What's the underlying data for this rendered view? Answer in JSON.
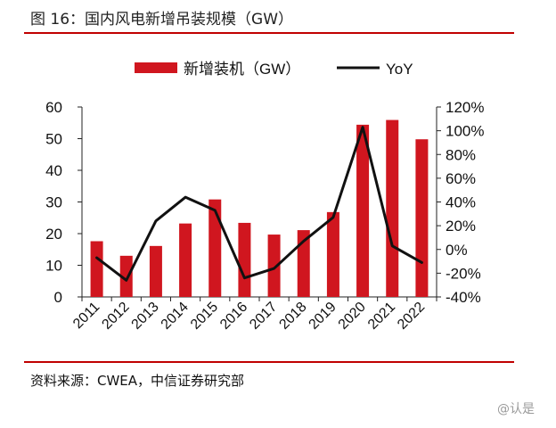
{
  "figure_title": "图 16：国内风电新增吊装规模（GW）",
  "source_text": "资料来源：CWEA，中信证券研究部",
  "watermark_text": "@认是",
  "chart_data": {
    "type": "bar",
    "categories": [
      "2011",
      "2012",
      "2013",
      "2014",
      "2015",
      "2016",
      "2017",
      "2018",
      "2019",
      "2020",
      "2021",
      "2022"
    ],
    "series": [
      {
        "name": "新增装机（GW）",
        "type": "bar",
        "axis": "left",
        "color": "#d0161f",
        "values": [
          17.6,
          13.0,
          16.1,
          23.2,
          30.8,
          23.4,
          19.7,
          21.1,
          26.8,
          54.4,
          55.9,
          49.8
        ]
      },
      {
        "name": "YoY",
        "type": "line",
        "axis": "right",
        "color": "#111111",
        "values": [
          -7,
          -26,
          24,
          44,
          33,
          -24,
          -16,
          7,
          27,
          103,
          3,
          -11
        ]
      }
    ],
    "y_left": {
      "range": [
        0,
        60
      ],
      "ticks": [
        "0",
        "10",
        "20",
        "30",
        "40",
        "50",
        "60"
      ]
    },
    "y_right": {
      "range": [
        -40,
        120
      ],
      "ticks": [
        "-40%",
        "-20%",
        "0%",
        "20%",
        "40%",
        "60%",
        "80%",
        "100%",
        "120%"
      ]
    },
    "legend_position": "top-center",
    "grid": false
  }
}
